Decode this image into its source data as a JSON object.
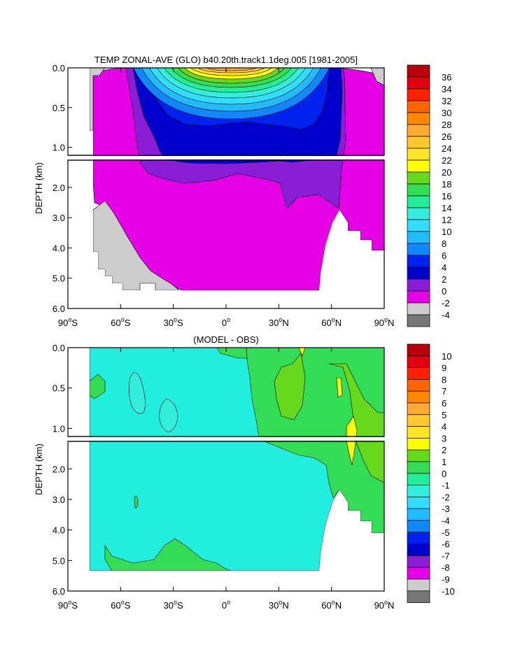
{
  "chart_data": [
    {
      "type": "heatmap",
      "title": "TEMP ZONAL-AVE (GLO) b40.20th.track1.1deg.005 [1981-2005]",
      "xlabel": "",
      "ylabel": "DEPTH (km)",
      "x_ticks": [
        {
          "value": -90,
          "num": "90",
          "hemi": "S"
        },
        {
          "value": -60,
          "num": "60",
          "hemi": "S"
        },
        {
          "value": -30,
          "num": "30",
          "hemi": "S"
        },
        {
          "value": 0,
          "num": "0",
          "hemi": ""
        },
        {
          "value": 30,
          "num": "30",
          "hemi": "N"
        },
        {
          "value": 60,
          "num": "60",
          "hemi": "N"
        },
        {
          "value": 90,
          "num": "90",
          "hemi": "N"
        }
      ],
      "y_ticks_upper": [
        "0.0",
        "0.5",
        "1.0"
      ],
      "y_ticks_lower": [
        "2.0",
        "3.0",
        "4.0",
        "5.0",
        "6.0"
      ],
      "ylim_upper_km": [
        0,
        1.1
      ],
      "ylim_lower_km": [
        1.1,
        6.0
      ],
      "colorbar_levels": [
        "36",
        "34",
        "32",
        "30",
        "28",
        "26",
        "24",
        "22",
        "20",
        "18",
        "16",
        "14",
        "12",
        "10",
        "8",
        "6",
        "4",
        "2",
        "0",
        "-2",
        "-4"
      ],
      "colorbar_colors": [
        "#b8000c",
        "#e3000e",
        "#ff2200",
        "#ff6600",
        "#ff8800",
        "#ffaa33",
        "#ffc82e",
        "#ffe52a",
        "#ffff00",
        "#66d91d",
        "#33dd55",
        "#22ee99",
        "#33eedd",
        "#33ddff",
        "#22bbff",
        "#1188ff",
        "#0022ee",
        "#0000cc",
        "#8a1ed6",
        "#e600e6",
        "#cccccc",
        "#777777"
      ],
      "levels": [
        {
          "value": 0,
          "color": "#e600e6"
        },
        {
          "value": 2,
          "color": "#8a1ed6"
        },
        {
          "value": 4,
          "color": "#0000cc"
        },
        {
          "value": 6,
          "color": "#0022ee"
        },
        {
          "value": 8,
          "color": "#1188ff"
        },
        {
          "value": 10,
          "color": "#22bbff"
        },
        {
          "value": 12,
          "color": "#33ddff"
        },
        {
          "value": 14,
          "color": "#33eedd"
        },
        {
          "value": 16,
          "color": "#22ee99"
        },
        {
          "value": 18,
          "color": "#33dd55"
        },
        {
          "value": 20,
          "color": "#66d91d"
        },
        {
          "value": 22,
          "color": "#ffff00"
        },
        {
          "value": 24,
          "color": "#ffe52a"
        },
        {
          "value": 26,
          "color": "#ffc82e"
        },
        {
          "value": 28,
          "color": "#ffaa33"
        }
      ]
    },
    {
      "type": "heatmap",
      "title": "(MODEL - OBS)",
      "xlabel": "",
      "ylabel": "DEPTH (km)",
      "x_ticks": [
        {
          "value": -90,
          "num": "90",
          "hemi": "S"
        },
        {
          "value": -60,
          "num": "60",
          "hemi": "S"
        },
        {
          "value": -30,
          "num": "30",
          "hemi": "S"
        },
        {
          "value": 0,
          "num": "0",
          "hemi": ""
        },
        {
          "value": 30,
          "num": "30",
          "hemi": "N"
        },
        {
          "value": 60,
          "num": "60",
          "hemi": "N"
        },
        {
          "value": 90,
          "num": "90",
          "hemi": "N"
        }
      ],
      "y_ticks_upper": [
        "0.0",
        "0.5",
        "1.0"
      ],
      "y_ticks_lower": [
        "2.0",
        "3.0",
        "4.0",
        "5.0",
        "6.0"
      ],
      "ylim_upper_km": [
        0,
        1.1
      ],
      "ylim_lower_km": [
        1.1,
        6.0
      ],
      "colorbar_levels": [
        "10",
        "9",
        "8",
        "7",
        "6",
        "5",
        "4",
        "3",
        "2",
        "1",
        "0",
        "-1",
        "-2",
        "-3",
        "-4",
        "-5",
        "-6",
        "-7",
        "-8",
        "-9",
        "-10"
      ],
      "colorbar_colors": [
        "#b8000c",
        "#e3000e",
        "#ff2200",
        "#ff6600",
        "#ff8800",
        "#ffaa33",
        "#ffc82e",
        "#ffe52a",
        "#ffff00",
        "#66d91d",
        "#33dd55",
        "#22ee99",
        "#33eedd",
        "#33ddff",
        "#22bbff",
        "#1188ff",
        "#0022ee",
        "#0000cc",
        "#8a1ed6",
        "#e600e6",
        "#cccccc",
        "#777777"
      ],
      "background_level": {
        "range": [
          -1,
          0
        ],
        "color": "#22eedd"
      }
    }
  ],
  "colors": {
    "land": "#cccccc",
    "axis": "#000000"
  }
}
